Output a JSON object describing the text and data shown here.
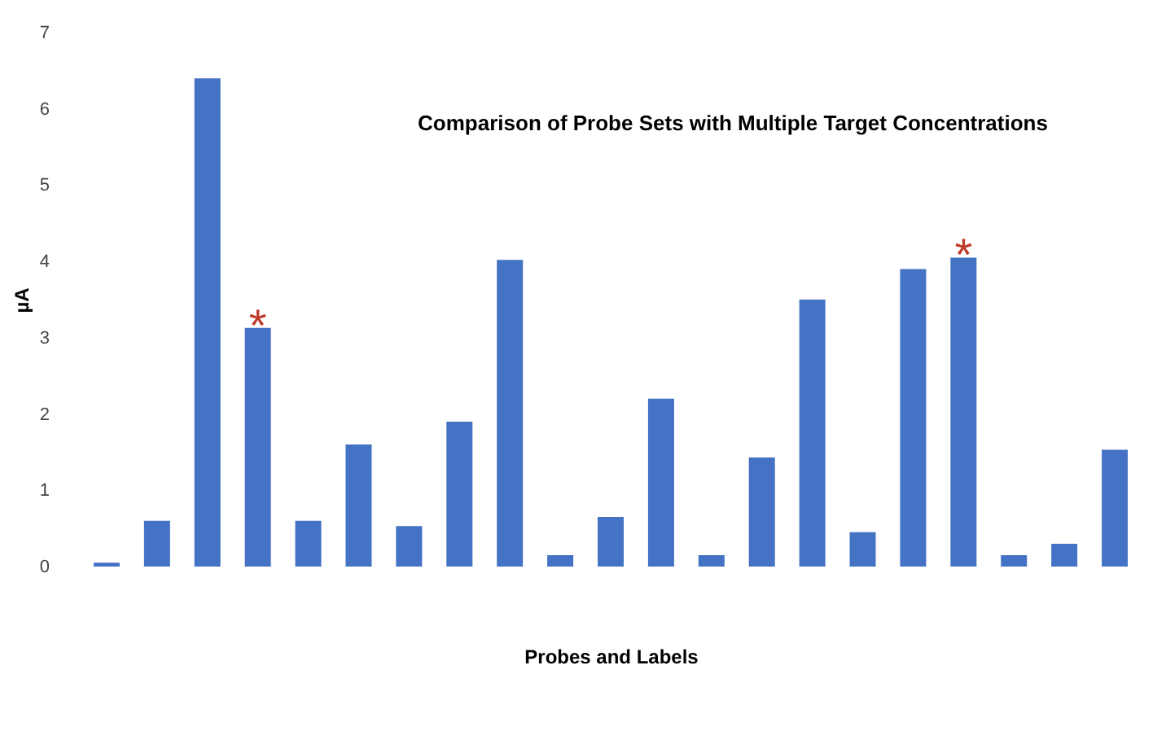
{
  "chart_data": {
    "type": "bar",
    "title": "Comparison of Probe Sets with Multiple Target Concentrations",
    "xlabel": "Probes and Labels",
    "ylabel": "µA",
    "categories": [
      null,
      null,
      null,
      null,
      null,
      null,
      null,
      null,
      null,
      null,
      null,
      null,
      null,
      null,
      null,
      null,
      null,
      null,
      null,
      null,
      null
    ],
    "values": [
      0.05,
      0.6,
      6.4,
      3.13,
      0.6,
      1.6,
      0.53,
      1.9,
      4.02,
      0.15,
      0.65,
      2.2,
      0.15,
      1.43,
      3.5,
      0.45,
      3.9,
      4.05,
      0.15,
      0.3,
      1.53
    ],
    "value_labels": [
      null,
      null,
      null,
      "*",
      null,
      null,
      null,
      null,
      null,
      null,
      null,
      null,
      null,
      null,
      null,
      null,
      null,
      "*",
      null,
      null,
      null
    ],
    "color": "#4472c4",
    "ylim": [
      0,
      7
    ],
    "yticks": [
      0,
      1,
      2,
      3,
      4,
      5,
      6,
      7
    ],
    "grid": false
  }
}
